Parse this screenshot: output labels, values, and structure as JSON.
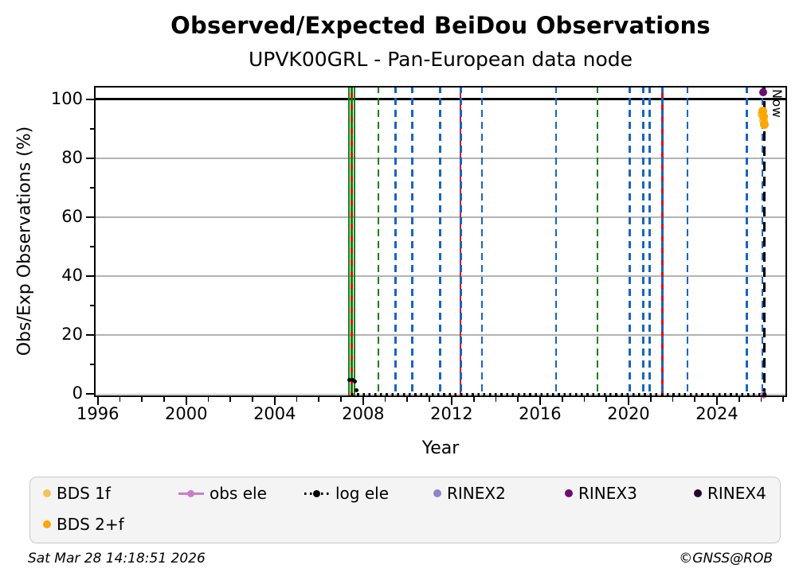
{
  "title": "Observed/Expected BeiDou Observations",
  "subtitle": "UPVK00GRL - Pan-European data node",
  "now_label": "Now",
  "footer": {
    "timestamp": "Sat Mar 28 14:18:51 2026",
    "credit": "©GNSS@ROB"
  },
  "chart_data": {
    "type": "line",
    "title": "Observed/Expected BeiDou Observations",
    "subtitle": "UPVK00GRL - Pan-European data node",
    "xlabel": "Year",
    "ylabel": "Obs/Exp Observations (%)",
    "xlim": [
      1995.83,
      2027.17
    ],
    "ylim": [
      -1.0,
      104.5
    ],
    "x_major_ticks": [
      1996,
      2000,
      2004,
      2008,
      2012,
      2016,
      2020,
      2024
    ],
    "x_minor_ticks": [
      1997,
      1998,
      1999,
      2001,
      2002,
      2003,
      2005,
      2006,
      2007,
      2009,
      2010,
      2011,
      2013,
      2014,
      2015,
      2017,
      2018,
      2019,
      2021,
      2022,
      2023,
      2025,
      2026,
      2027
    ],
    "y_major_ticks": [
      0,
      20,
      40,
      60,
      80,
      100
    ],
    "y_minor_ticks": [
      10,
      30,
      50,
      70,
      90
    ],
    "grid": "horizontal-only",
    "legend_position": "below",
    "reference_line_100": {
      "y": 100,
      "color": "#000000",
      "style": "solid"
    },
    "now_line": {
      "x": 2026.15,
      "color": "#000000",
      "style": "dashed",
      "label": "Now"
    },
    "event_vlines": [
      {
        "x": 2007.36,
        "color": "#128212",
        "style": "solid"
      },
      {
        "x": 2007.49,
        "color": "#e80000",
        "style": "solid"
      },
      {
        "x": 2007.49,
        "color": "#128212",
        "style": "dashed"
      },
      {
        "x": 2007.61,
        "color": "#128212",
        "style": "solid"
      },
      {
        "x": 2008.69,
        "color": "#128212",
        "style": "dashed"
      },
      {
        "x": 2009.47,
        "color": "#1565c4",
        "style": "dashed"
      },
      {
        "x": 2010.23,
        "color": "#1565c4",
        "style": "dashed"
      },
      {
        "x": 2011.49,
        "color": "#1565c4",
        "style": "dashed"
      },
      {
        "x": 2012.4,
        "color": "#e80000",
        "style": "solid"
      },
      {
        "x": 2012.42,
        "color": "#1565c4",
        "style": "dashed"
      },
      {
        "x": 2013.37,
        "color": "#1565c4",
        "style": "dashed"
      },
      {
        "x": 2016.73,
        "color": "#1565c4",
        "style": "dashed"
      },
      {
        "x": 2018.6,
        "color": "#128212",
        "style": "dashed"
      },
      {
        "x": 2020.06,
        "color": "#1565c4",
        "style": "dashed"
      },
      {
        "x": 2020.66,
        "color": "#1565c4",
        "style": "dashed"
      },
      {
        "x": 2020.96,
        "color": "#1565c4",
        "style": "dashed"
      },
      {
        "x": 2021.53,
        "color": "#e80000",
        "style": "solid"
      },
      {
        "x": 2021.53,
        "color": "#1565c4",
        "style": "dashed"
      },
      {
        "x": 2022.67,
        "color": "#1565c4",
        "style": "dashed"
      },
      {
        "x": 2025.35,
        "color": "#1565c4",
        "style": "dashed"
      },
      {
        "x": 2026.06,
        "color": "#1565c4",
        "style": "dashed"
      }
    ],
    "series": [
      {
        "name": "BDS 1f",
        "color": "#f4c35a",
        "marker": "dot",
        "size": 11,
        "points": [
          [
            2026.05,
            95.0
          ],
          [
            2026.09,
            92.8
          ]
        ]
      },
      {
        "name": "BDS 2+f",
        "color": "#fba700",
        "marker": "dot",
        "size": 11,
        "points": [
          [
            2026.07,
            95.9
          ],
          [
            2026.1,
            94.1
          ],
          [
            2026.13,
            91.3
          ]
        ]
      },
      {
        "name": "obs ele",
        "color": "#c77ec7",
        "marker": "dot",
        "size": 9,
        "points": [
          [
            2026.1,
            -0.3
          ]
        ]
      },
      {
        "name": "log ele",
        "color": "#000000",
        "marker": "dot",
        "size": 5,
        "points": [
          [
            2007.38,
            4.7
          ],
          [
            2007.52,
            4.7
          ],
          [
            2007.64,
            4.2
          ],
          [
            2007.7,
            1.3
          ],
          [
            2026.13,
            0.0
          ]
        ],
        "baseline": {
          "y": 0,
          "x_from": 2007.45,
          "x_to": 2026.15,
          "style": "dotted"
        }
      },
      {
        "name": "RINEX2",
        "color": "#8f84c8",
        "marker": "dot",
        "size": 10,
        "points": []
      },
      {
        "name": "RINEX3",
        "color": "#6c0d72",
        "marker": "dot",
        "size": 10,
        "points": [
          [
            2026.08,
            102.3
          ]
        ]
      },
      {
        "name": "RINEX4",
        "color": "#250631",
        "marker": "dot",
        "size": 10,
        "points": []
      }
    ]
  },
  "legend": {
    "rows": [
      [
        {
          "label": "BDS 1f",
          "marker": "dot",
          "color": "#f4c35a"
        },
        {
          "label": "obs ele",
          "marker": "line-dot",
          "color": "#c77ec7"
        },
        {
          "label": "log ele",
          "marker": "dotted-line-dot",
          "color": "#000000"
        },
        {
          "label": "RINEX2",
          "marker": "dot",
          "color": "#8f84c8"
        },
        {
          "label": "RINEX3",
          "marker": "dot",
          "color": "#6c0d72"
        },
        {
          "label": "RINEX4",
          "marker": "dot",
          "color": "#250631"
        }
      ],
      [
        {
          "label": "BDS 2+f",
          "marker": "dot",
          "color": "#fba700"
        }
      ]
    ]
  }
}
